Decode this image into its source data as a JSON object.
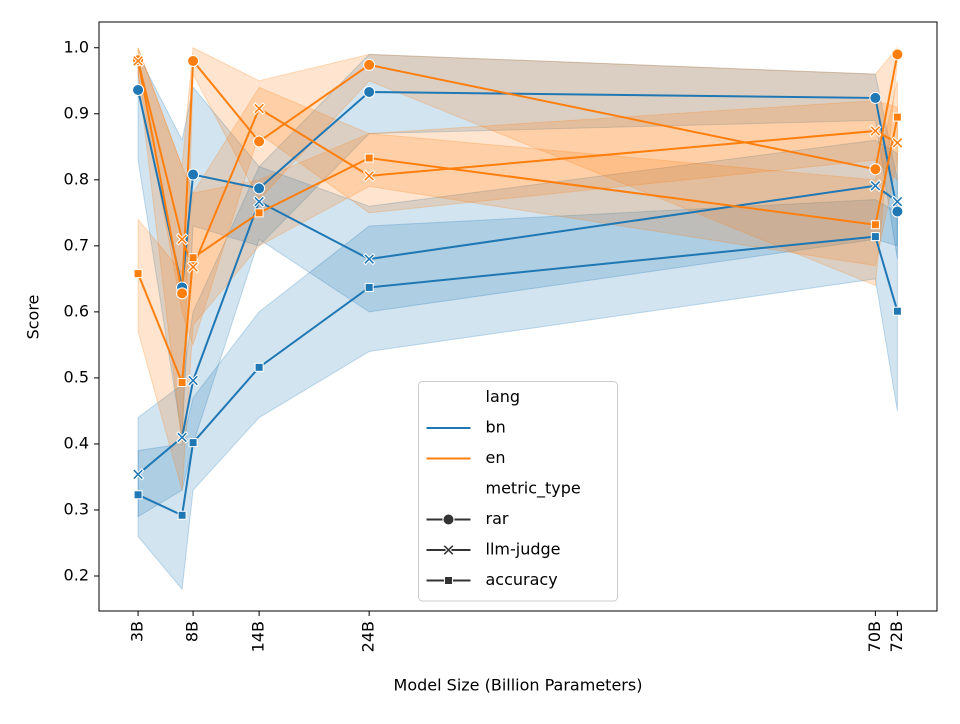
{
  "chart_data": {
    "type": "line",
    "x_label": "Model Size (Billion Parameters)",
    "y_label": "Score",
    "x": [
      3,
      7,
      8,
      14,
      24,
      70,
      72
    ],
    "xlim": [
      -0.55,
      75.6
    ],
    "xticks": [
      {
        "value": 3,
        "label": "3B"
      },
      {
        "value": 8,
        "label": "8B"
      },
      {
        "value": 14,
        "label": "14B"
      },
      {
        "value": 24,
        "label": "24B"
      },
      {
        "value": 70,
        "label": "70B"
      },
      {
        "value": 72,
        "label": "72B"
      }
    ],
    "ylim": [
      0.147,
      1.039
    ],
    "yticks": [
      {
        "value": 0.2,
        "label": "0.2"
      },
      {
        "value": 0.3,
        "label": "0.3"
      },
      {
        "value": 0.4,
        "label": "0.4"
      },
      {
        "value": 0.5,
        "label": "0.5"
      },
      {
        "value": 0.6,
        "label": "0.6"
      },
      {
        "value": 0.7,
        "label": "0.7"
      },
      {
        "value": 0.8,
        "label": "0.8"
      },
      {
        "value": 0.9,
        "label": "0.9"
      },
      {
        "value": 1.0,
        "label": "1.0"
      }
    ],
    "legend_loc": "lower center",
    "hue": {
      "title": "lang",
      "levels": [
        {
          "name": "bn",
          "color": "#1f77b4"
        },
        {
          "name": "en",
          "color": "#ff7f0e"
        }
      ]
    },
    "style": {
      "title": "metric_type",
      "levels": [
        {
          "name": "rar",
          "marker": "circle"
        },
        {
          "name": "llm-judge",
          "marker": "x"
        },
        {
          "name": "accuracy",
          "marker": "square"
        }
      ]
    },
    "series": [
      {
        "hue": 0,
        "style": 0,
        "values": [
          0.936,
          0.637,
          0.808,
          0.787,
          0.933,
          0.924,
          0.752
        ],
        "ci_lower": [
          0.83,
          0.41,
          0.73,
          0.7,
          0.87,
          0.89,
          0.68
        ],
        "ci_upper": [
          0.99,
          0.86,
          0.94,
          0.82,
          0.99,
          0.96,
          0.8
        ]
      },
      {
        "hue": 0,
        "style": 1,
        "values": [
          0.354,
          0.41,
          0.496,
          0.767,
          0.68,
          0.791,
          0.767
        ],
        "ci_lower": [
          0.29,
          0.33,
          0.4,
          0.71,
          0.6,
          0.71,
          0.7
        ],
        "ci_upper": [
          0.44,
          0.49,
          0.6,
          0.82,
          0.76,
          0.86,
          0.84
        ]
      },
      {
        "hue": 0,
        "style": 2,
        "values": [
          0.323,
          0.292,
          0.402,
          0.516,
          0.637,
          0.714,
          0.601
        ],
        "ci_lower": [
          0.26,
          0.18,
          0.33,
          0.44,
          0.54,
          0.65,
          0.45
        ],
        "ci_upper": [
          0.39,
          0.4,
          0.47,
          0.6,
          0.73,
          0.77,
          0.75
        ]
      },
      {
        "hue": 1,
        "style": 0,
        "values": [
          0.981,
          0.628,
          0.98,
          0.858,
          0.974,
          0.816,
          0.99
        ],
        "ci_lower": [
          0.96,
          0.4,
          0.96,
          0.77,
          0.95,
          0.64,
          0.98
        ],
        "ci_upper": [
          1.0,
          0.82,
          1.0,
          0.95,
          0.99,
          0.96,
          1.0
        ]
      },
      {
        "hue": 1,
        "style": 1,
        "values": [
          0.98,
          0.71,
          0.668,
          0.908,
          0.806,
          0.874,
          0.856
        ],
        "ci_lower": [
          0.96,
          0.6,
          0.55,
          0.87,
          0.75,
          0.83,
          0.8
        ],
        "ci_upper": [
          1.0,
          0.82,
          0.78,
          0.94,
          0.87,
          0.92,
          0.91
        ]
      },
      {
        "hue": 1,
        "style": 2,
        "values": [
          0.658,
          0.493,
          0.682,
          0.75,
          0.833,
          0.732,
          0.895
        ],
        "ci_lower": [
          0.57,
          0.33,
          0.58,
          0.7,
          0.79,
          0.67,
          0.83
        ],
        "ci_upper": [
          0.74,
          0.66,
          0.78,
          0.8,
          0.87,
          0.8,
          0.95
        ]
      }
    ]
  }
}
